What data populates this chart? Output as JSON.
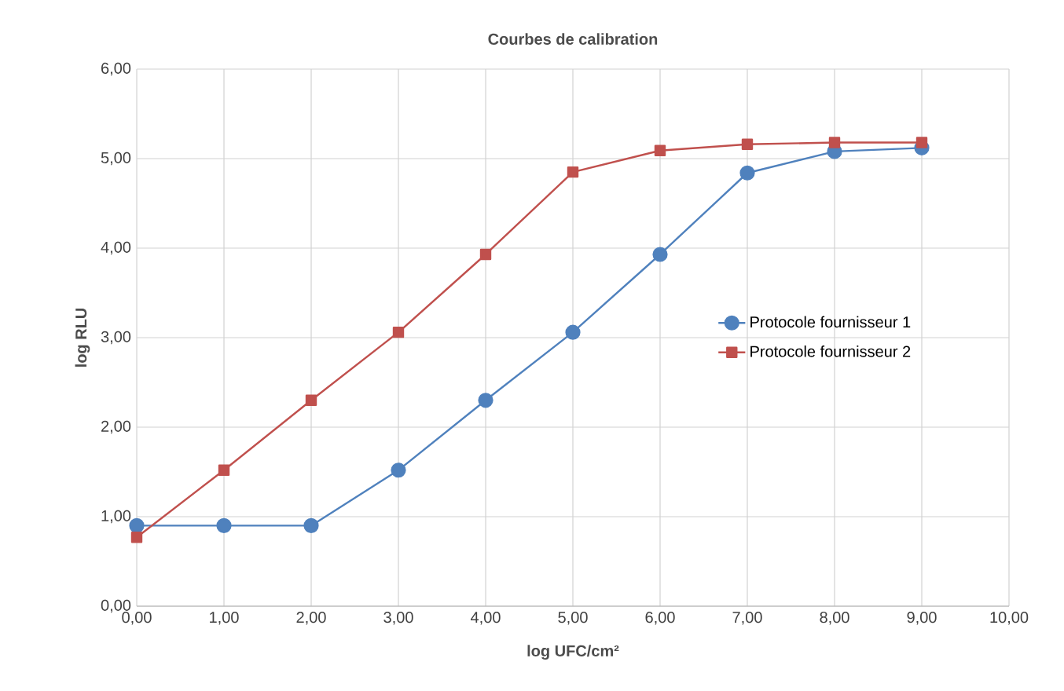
{
  "chart_data": {
    "type": "line",
    "title": "Courbes de calibration",
    "xlabel": "log UFC/cm²",
    "ylabel": "log RLU",
    "x": [
      0,
      1,
      2,
      3,
      4,
      5,
      6,
      7,
      8,
      9
    ],
    "series": [
      {
        "name": "Protocole fournisseur 1",
        "color": "#4f81bd",
        "marker": "circle",
        "values": [
          0.9,
          0.9,
          0.9,
          1.52,
          2.3,
          3.06,
          3.93,
          4.84,
          5.08,
          5.12
        ]
      },
      {
        "name": "Protocole fournisseur 2",
        "color": "#c0504d",
        "marker": "square",
        "values": [
          0.77,
          1.52,
          2.3,
          3.06,
          3.93,
          4.85,
          5.09,
          5.16,
          5.18,
          5.18
        ]
      }
    ],
    "xlim": [
      0,
      10
    ],
    "ylim": [
      0,
      6
    ],
    "xticks": [
      {
        "value": 0,
        "label": "0,00"
      },
      {
        "value": 1,
        "label": "1,00"
      },
      {
        "value": 2,
        "label": "2,00"
      },
      {
        "value": 3,
        "label": "3,00"
      },
      {
        "value": 4,
        "label": "4,00"
      },
      {
        "value": 5,
        "label": "5,00"
      },
      {
        "value": 6,
        "label": "6,00"
      },
      {
        "value": 7,
        "label": "7,00"
      },
      {
        "value": 8,
        "label": "8,00"
      },
      {
        "value": 9,
        "label": "9,00"
      },
      {
        "value": 10,
        "label": "10,00"
      }
    ],
    "yticks": [
      {
        "value": 0,
        "label": "0,00"
      },
      {
        "value": 1,
        "label": "1,00"
      },
      {
        "value": 2,
        "label": "2,00"
      },
      {
        "value": 3,
        "label": "3,00"
      },
      {
        "value": 4,
        "label": "4,00"
      },
      {
        "value": 5,
        "label": "5,00"
      },
      {
        "value": 6,
        "label": "6,00"
      }
    ],
    "grid": true,
    "legend": "right",
    "line_style": "solid"
  }
}
